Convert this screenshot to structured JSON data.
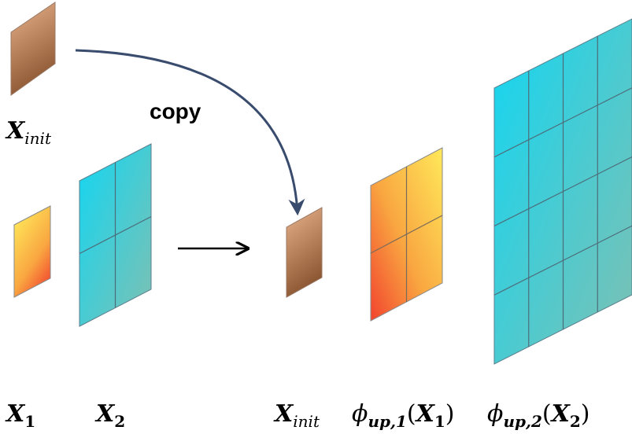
{
  "copy_label": "copy",
  "labels": {
    "x_init_top": {
      "main": "X",
      "sub": "init"
    },
    "x1": {
      "main": "X",
      "sub": "1"
    },
    "x2": {
      "main": "X",
      "sub": "2"
    },
    "x_init_bottom": {
      "main": "X",
      "sub": "init"
    },
    "phi1": {
      "phi": "ϕ",
      "sub": "up,1",
      "open": "(",
      "arg": "X",
      "argsub": "1",
      "close": ")"
    },
    "phi2": {
      "phi": "ϕ",
      "sub": "up,2",
      "open": "(",
      "arg": "X",
      "argsub": "2",
      "close": ")"
    }
  },
  "colors": {
    "copper_top": "#e9b38c",
    "copper_bottom": "#8a5530",
    "warm_top": "#ffe95a",
    "warm_bottom": "#f2432e",
    "cyan": "#17d3ec",
    "teal": "#79c2b4",
    "arrow": "#3a4c6e",
    "grid_line": "#4d6c79"
  }
}
